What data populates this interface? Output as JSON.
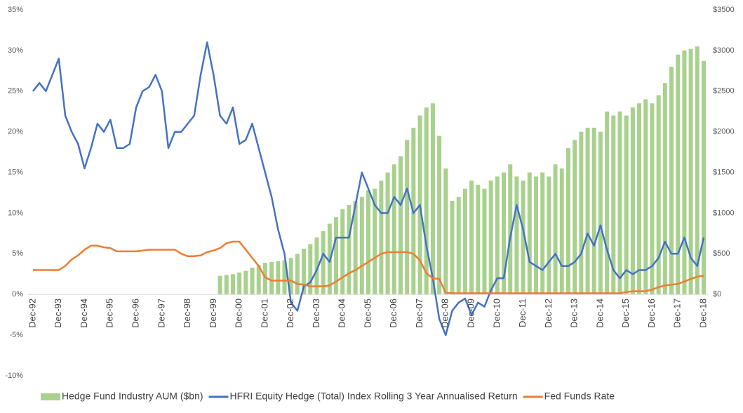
{
  "chart_data": {
    "type": "bar_line_combo",
    "categories": [
      "Dec-92",
      null,
      null,
      null,
      "Dec-93",
      null,
      null,
      null,
      "Dec-94",
      null,
      null,
      null,
      "Dec-95",
      null,
      null,
      null,
      "Dec-96",
      null,
      null,
      null,
      "Dec-97",
      null,
      null,
      null,
      "Dec-98",
      null,
      null,
      null,
      "Dec-99",
      null,
      null,
      null,
      "Dec-00",
      null,
      null,
      null,
      "Dec-01",
      null,
      null,
      null,
      "Dec-02",
      null,
      null,
      null,
      "Dec-03",
      null,
      null,
      null,
      "Dec-04",
      null,
      null,
      null,
      "Dec-05",
      null,
      null,
      null,
      "Dec-06",
      null,
      null,
      null,
      "Dec-07",
      null,
      null,
      null,
      "Dec-08",
      null,
      null,
      null,
      "Dec-09",
      null,
      null,
      null,
      "Dec-10",
      null,
      null,
      null,
      "Dec-11",
      null,
      null,
      null,
      "Dec-12",
      null,
      null,
      null,
      "Dec-13",
      null,
      null,
      null,
      "Dec-14",
      null,
      null,
      null,
      "Dec-15",
      null,
      null,
      null,
      "Dec-16",
      null,
      null,
      null,
      "Dec-17",
      null,
      null,
      null,
      "Dec-18"
    ],
    "series": [
      {
        "name": "Hedge Fund Industry AUM ($bn)",
        "type": "bar",
        "axis": "y2",
        "color": "#a9d18e",
        "values": [
          null,
          null,
          null,
          null,
          null,
          null,
          null,
          null,
          null,
          null,
          null,
          null,
          null,
          null,
          null,
          null,
          null,
          null,
          null,
          null,
          null,
          null,
          null,
          null,
          null,
          null,
          null,
          null,
          null,
          230,
          240,
          250,
          270,
          290,
          330,
          360,
          390,
          400,
          410,
          420,
          450,
          500,
          560,
          620,
          700,
          780,
          870,
          950,
          1050,
          1100,
          1150,
          1200,
          1280,
          1300,
          1400,
          1500,
          1600,
          1700,
          1900,
          2050,
          2200,
          2300,
          2350,
          1950,
          1550,
          1150,
          1200,
          1300,
          1400,
          1350,
          1300,
          1400,
          1450,
          1500,
          1600,
          1450,
          1400,
          1500,
          1450,
          1500,
          1450,
          1600,
          1550,
          1800,
          1900,
          2000,
          2050,
          2050,
          2000,
          2250,
          2200,
          2250,
          2200,
          2300,
          2350,
          2400,
          2350,
          2450,
          2600,
          2800,
          2950,
          3000,
          3020,
          3050,
          2870
        ]
      },
      {
        "name": "HFRI Equity Hedge (Total) Index Rolling 3 Year Annualised Return",
        "type": "line",
        "color": "#4472c4",
        "values": [
          25,
          26,
          25,
          27,
          29,
          22,
          20,
          18.5,
          15.5,
          18,
          21,
          20,
          21.5,
          18,
          18,
          18.5,
          23,
          25,
          25.5,
          27,
          25,
          18,
          20,
          20,
          21,
          22,
          27,
          31,
          27,
          22,
          21,
          23,
          18.5,
          19,
          21,
          18,
          15,
          12,
          8,
          5,
          -1,
          -2,
          1,
          1.5,
          3,
          5,
          4,
          7,
          7,
          7,
          11,
          15,
          13,
          11,
          10,
          10,
          12,
          11,
          13,
          10,
          11,
          6,
          2,
          -3,
          -5,
          -2,
          -1,
          -0.5,
          -2.5,
          -1,
          -1.5,
          0.5,
          2,
          2,
          7,
          11,
          8,
          4,
          3.5,
          3,
          4,
          5,
          3.5,
          3.5,
          4,
          5,
          7.5,
          6,
          8.5,
          5.5,
          3,
          2,
          3,
          2.5,
          3,
          3,
          3.5,
          4.5,
          6.5,
          5,
          5,
          7,
          4.5,
          3.5,
          7
        ]
      },
      {
        "name": "Fed Funds Rate",
        "type": "line",
        "color": "#ed7d31",
        "values": [
          3.0,
          3.0,
          3.0,
          3.0,
          3.0,
          3.5,
          4.3,
          4.8,
          5.5,
          6.0,
          6.0,
          5.8,
          5.7,
          5.3,
          5.3,
          5.3,
          5.3,
          5.4,
          5.5,
          5.5,
          5.5,
          5.5,
          5.5,
          5.0,
          4.7,
          4.7,
          4.8,
          5.2,
          5.4,
          5.7,
          6.3,
          6.5,
          6.5,
          5.5,
          4.5,
          3.5,
          2.1,
          1.7,
          1.7,
          1.7,
          1.7,
          1.3,
          1.2,
          1.0,
          1.0,
          1.0,
          1.1,
          1.6,
          2.1,
          2.6,
          3.0,
          3.5,
          4.0,
          4.5,
          5.0,
          5.2,
          5.2,
          5.2,
          5.2,
          5.0,
          4.2,
          2.6,
          2.0,
          1.9,
          0.2,
          0.15,
          0.15,
          0.15,
          0.15,
          0.15,
          0.15,
          0.15,
          0.15,
          0.15,
          0.15,
          0.15,
          0.15,
          0.15,
          0.15,
          0.15,
          0.15,
          0.15,
          0.15,
          0.15,
          0.15,
          0.15,
          0.15,
          0.15,
          0.15,
          0.15,
          0.15,
          0.15,
          0.3,
          0.4,
          0.4,
          0.4,
          0.6,
          0.9,
          1.1,
          1.2,
          1.3,
          1.6,
          1.9,
          2.2,
          2.3
        ]
      }
    ],
    "ylim": [
      -10,
      35
    ],
    "yticks": [
      {
        "value": -10,
        "label": "-10%"
      },
      {
        "value": -5,
        "label": "-5%"
      },
      {
        "value": 0,
        "label": "0%"
      },
      {
        "value": 5,
        "label": "5%"
      },
      {
        "value": 10,
        "label": "10%"
      },
      {
        "value": 15,
        "label": "15%"
      },
      {
        "value": 20,
        "label": "20%"
      },
      {
        "value": 25,
        "label": "25%"
      },
      {
        "value": 30,
        "label": "30%"
      },
      {
        "value": 35,
        "label": "35%"
      }
    ],
    "y2lim": [
      -1000,
      3500
    ],
    "y2ticks": [
      {
        "value": 0,
        "label": "$0"
      },
      {
        "value": 500,
        "label": "$500"
      },
      {
        "value": 1000,
        "label": "$1000"
      },
      {
        "value": 1500,
        "label": "$1500"
      },
      {
        "value": 2000,
        "label": "$2000"
      },
      {
        "value": 2500,
        "label": "$2500"
      },
      {
        "value": 3000,
        "label": "$3000"
      },
      {
        "value": 3500,
        "label": "$3500"
      }
    ],
    "legend": "bottom",
    "grid": false
  }
}
